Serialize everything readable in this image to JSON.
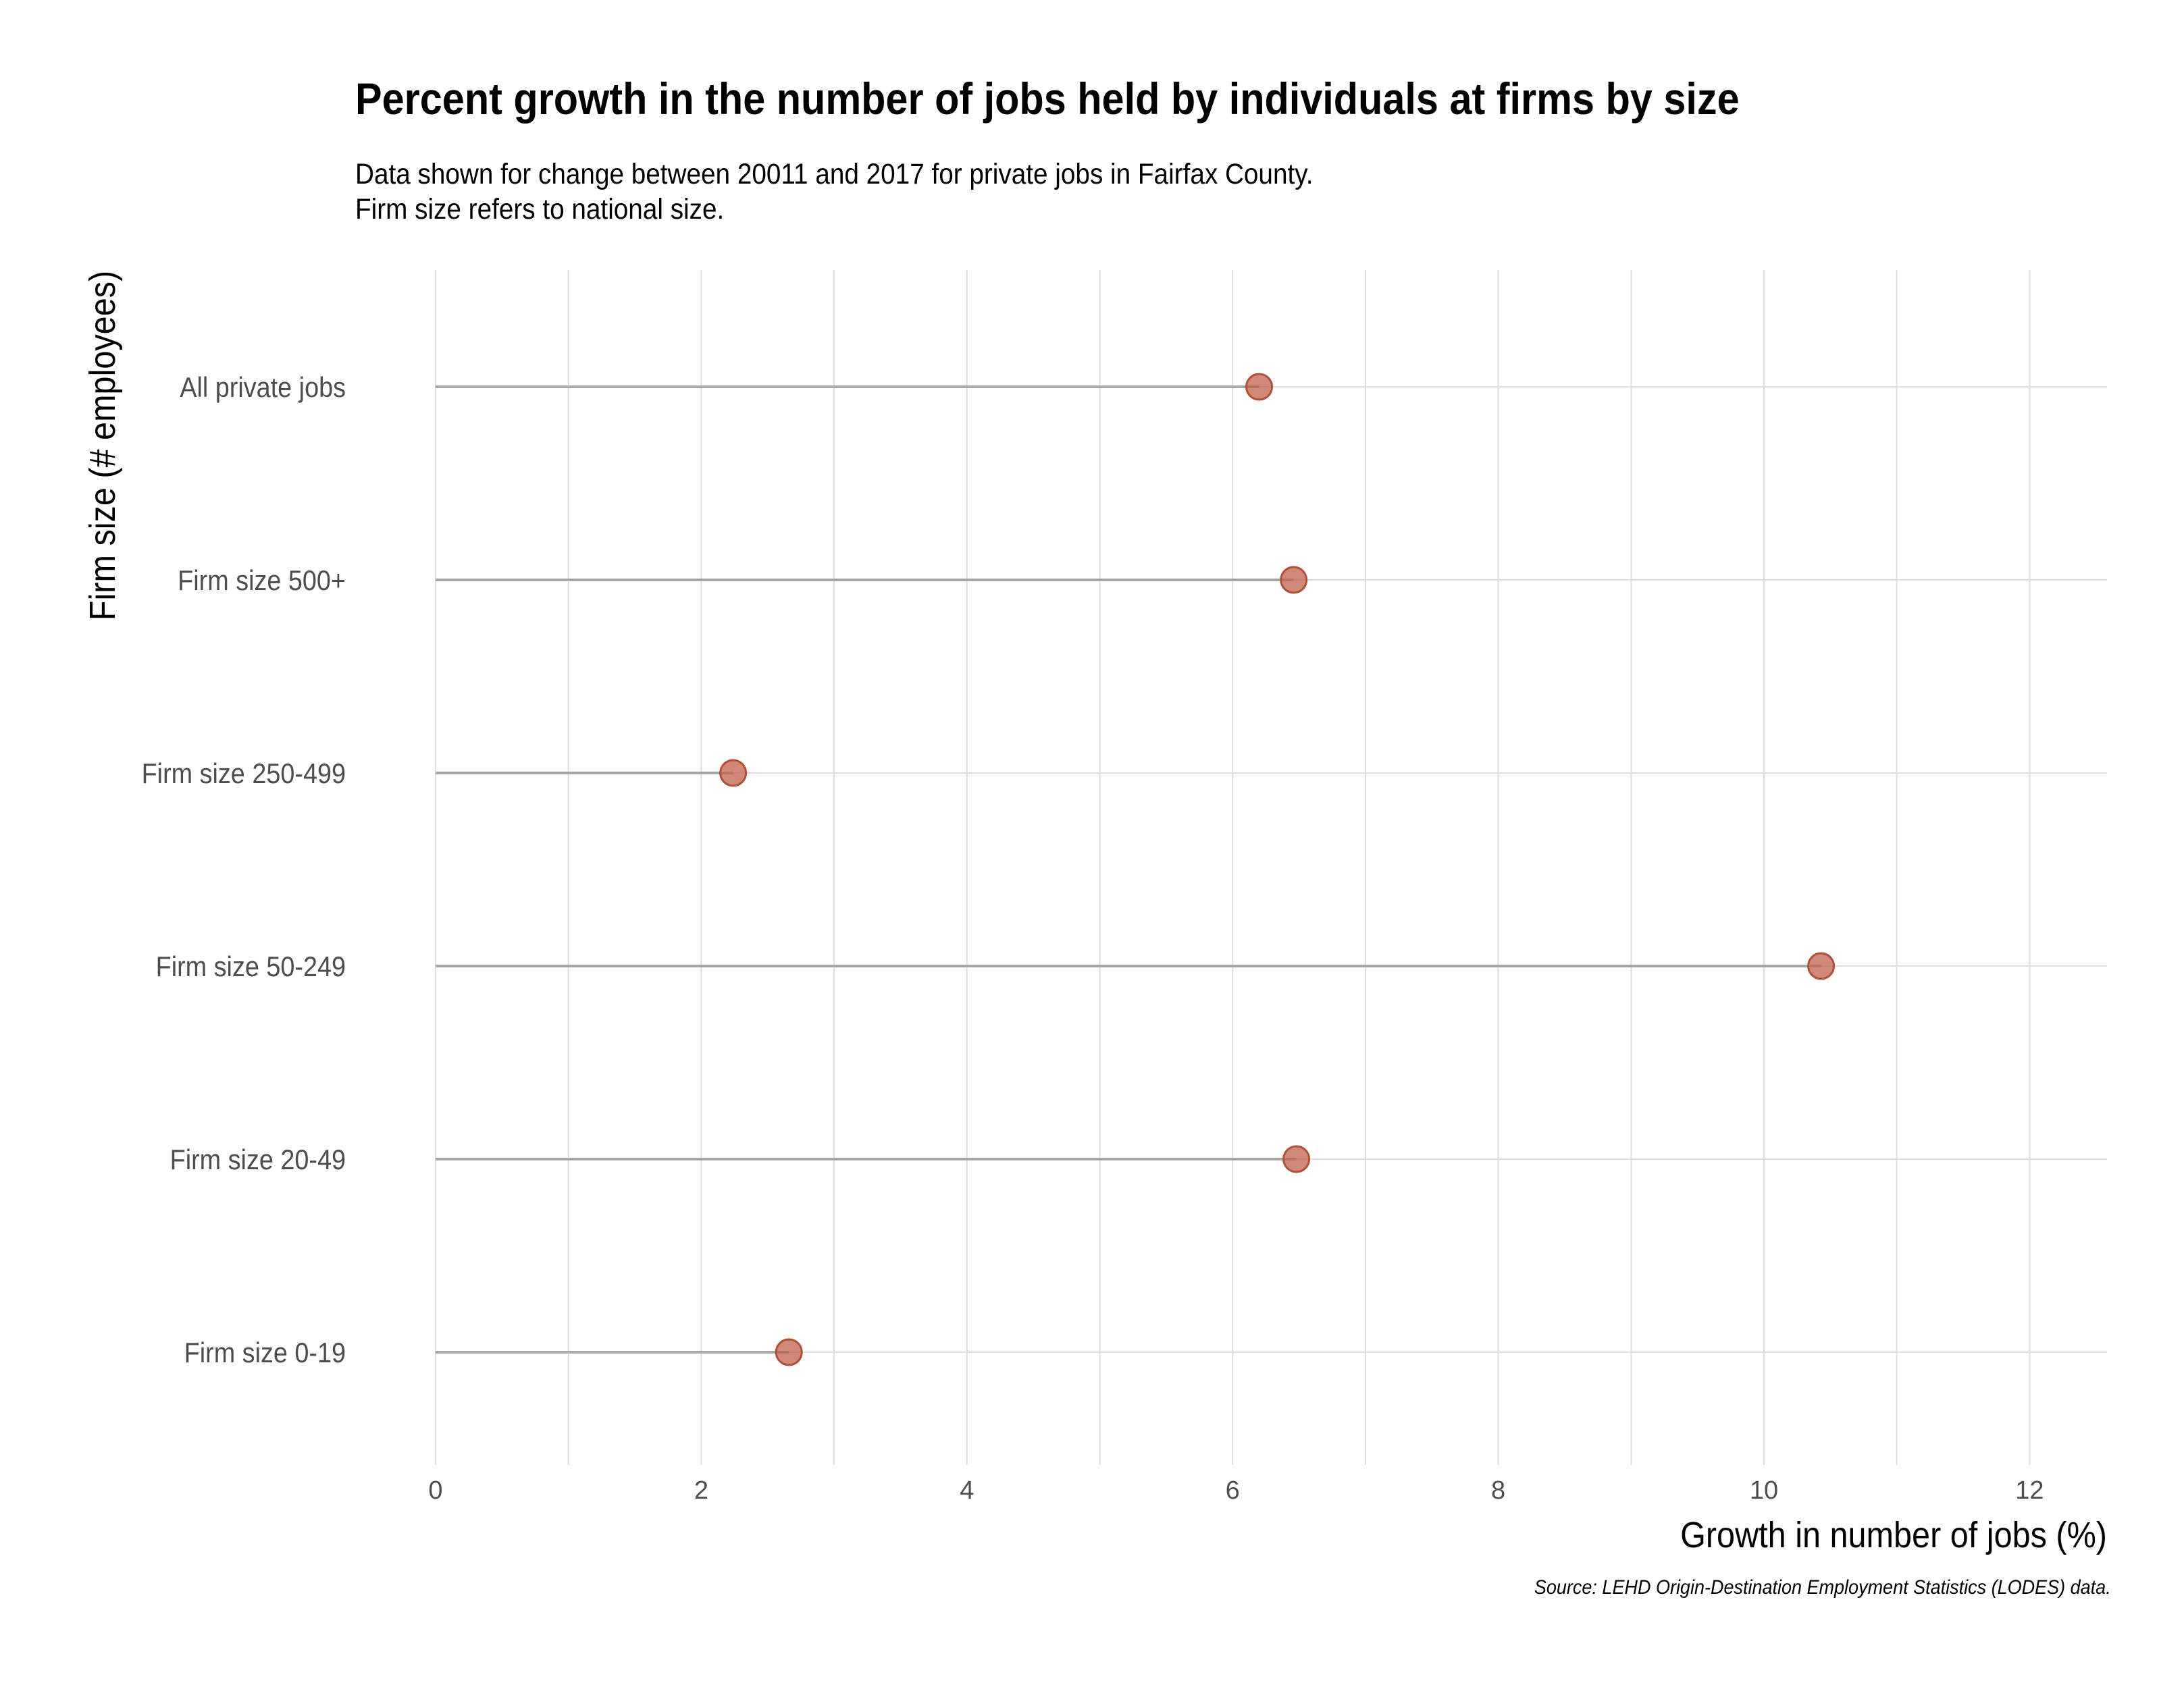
{
  "chart_data": {
    "type": "lollipop",
    "title": "Percent growth in the number of jobs held by individuals at firms by size",
    "subtitle": [
      "Data shown for change between 20011 and 2017 for private jobs in Fairfax County.",
      "Firm size refers to national size."
    ],
    "xlabel": "Growth in number of jobs (%)",
    "ylabel": "Firm size (# employees)",
    "caption": "Source: LEHD Origin-Destination Employment Statistics (LODES) data.",
    "xlim": [
      0,
      12.6
    ],
    "x_ticks": [
      0,
      2,
      4,
      6,
      8,
      10,
      12
    ],
    "grid": true,
    "point_color": "#c0604a",
    "stem_color": "#a6a6a6",
    "categories": [
      "All private jobs",
      "Firm size 500+",
      "Firm size 250-499",
      "Firm size 50-249",
      "Firm size 20-49",
      "Firm size 0-19"
    ],
    "values": [
      6.2,
      6.46,
      2.24,
      10.43,
      6.48,
      2.66
    ]
  }
}
